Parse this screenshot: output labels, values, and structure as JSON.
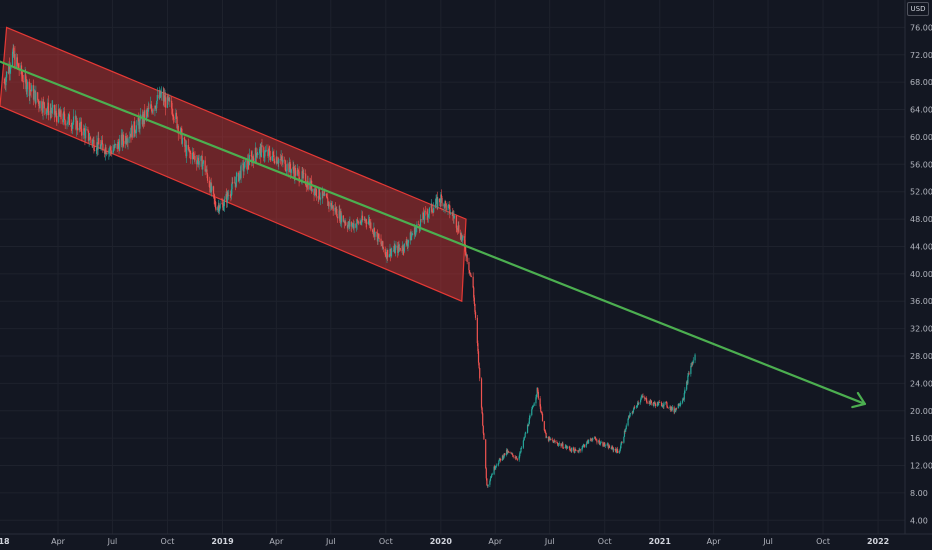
{
  "chart_data": {
    "type": "candlestick",
    "currency_label": "USD",
    "price_axis": {
      "range": [
        2,
        80
      ],
      "ticks": [
        4,
        8,
        12,
        16,
        20,
        24,
        28,
        32,
        36,
        40,
        44,
        48,
        52,
        56,
        60,
        64,
        68,
        72,
        76
      ],
      "tick_labels": [
        "4.00",
        "8.00",
        "12.00",
        "16.00",
        "20.00",
        "24.00",
        "28.00",
        "32.00",
        "36.00",
        "40.00",
        "44.00",
        "48.00",
        "52.00",
        "56.00",
        "60.00",
        "64.00",
        "68.00",
        "72.00",
        "76.00"
      ]
    },
    "time_axis": {
      "range": [
        "2017-12-25",
        "2022-02-15"
      ],
      "ticks": [
        "2018-04-01",
        "2018-07-01",
        "2018-10-01",
        "2019-01-01",
        "2019-04-01",
        "2019-07-01",
        "2019-10-01",
        "2020-01-01",
        "2020-04-01",
        "2020-07-01",
        "2020-10-01",
        "2021-01-01",
        "2021-04-01",
        "2021-07-01",
        "2021-10-01",
        "2022-01-01"
      ],
      "tick_labels": [
        "Apr",
        "Jul",
        "Oct",
        "2019",
        "Apr",
        "Jul",
        "Oct",
        "2020",
        "Apr",
        "Jul",
        "Oct",
        "2021",
        "Apr",
        "Jul",
        "Oct",
        "2022"
      ],
      "edge_label": "18"
    },
    "colors": {
      "up": "#26a69a",
      "down": "#ef5350",
      "channel": "#e53935",
      "trendline": "#4caf50",
      "background": "#131722",
      "grid": "#1e222d"
    },
    "price_path": [
      [
        "2018-01-01",
        68
      ],
      [
        "2018-01-15",
        72
      ],
      [
        "2018-02-05",
        68
      ],
      [
        "2018-03-01",
        65
      ],
      [
        "2018-04-01",
        63
      ],
      [
        "2018-05-01",
        62
      ],
      [
        "2018-06-01",
        59
      ],
      [
        "2018-07-01",
        58
      ],
      [
        "2018-08-15",
        62
      ],
      [
        "2018-09-20",
        66
      ],
      [
        "2018-10-10",
        64
      ],
      [
        "2018-11-01",
        58
      ],
      [
        "2018-12-01",
        56
      ],
      [
        "2018-12-20",
        50
      ],
      [
        "2019-01-01",
        50
      ],
      [
        "2019-02-01",
        55
      ],
      [
        "2019-03-01",
        58
      ],
      [
        "2019-04-01",
        57
      ],
      [
        "2019-05-15",
        54
      ],
      [
        "2019-07-01",
        50
      ],
      [
        "2019-08-01",
        47
      ],
      [
        "2019-09-01",
        48
      ],
      [
        "2019-10-01",
        43
      ],
      [
        "2019-11-01",
        44
      ],
      [
        "2019-12-01",
        48
      ],
      [
        "2020-01-01",
        51
      ],
      [
        "2020-01-25",
        48
      ],
      [
        "2020-02-10",
        44
      ],
      [
        "2020-02-24",
        38
      ],
      [
        "2020-03-05",
        26
      ],
      [
        "2020-03-18",
        9
      ],
      [
        "2020-04-01",
        12
      ],
      [
        "2020-04-20",
        14
      ],
      [
        "2020-05-10",
        13
      ],
      [
        "2020-06-01",
        20
      ],
      [
        "2020-06-10",
        23
      ],
      [
        "2020-06-25",
        16
      ],
      [
        "2020-07-20",
        15
      ],
      [
        "2020-08-15",
        14
      ],
      [
        "2020-09-10",
        16
      ],
      [
        "2020-10-01",
        15
      ],
      [
        "2020-10-25",
        14
      ],
      [
        "2020-11-10",
        19
      ],
      [
        "2020-12-01",
        22
      ],
      [
        "2020-12-20",
        21
      ],
      [
        "2021-01-10",
        21
      ],
      [
        "2021-01-25",
        20
      ],
      [
        "2021-02-10",
        22
      ],
      [
        "2021-02-20",
        26
      ],
      [
        "2021-03-01",
        28
      ]
    ],
    "annotations": [
      {
        "type": "parallel-channel",
        "color": "#e53935",
        "upper": [
          [
            "2018-01-05",
            76
          ],
          [
            "2020-02-12",
            48
          ]
        ],
        "lower": [
          [
            "2017-12-25",
            64.5
          ],
          [
            "2020-02-05",
            36
          ]
        ]
      },
      {
        "type": "trend-line-arrow",
        "color": "#4caf50",
        "from": [
          "2017-12-25",
          71
        ],
        "to": [
          "2021-12-10",
          21
        ]
      }
    ]
  }
}
